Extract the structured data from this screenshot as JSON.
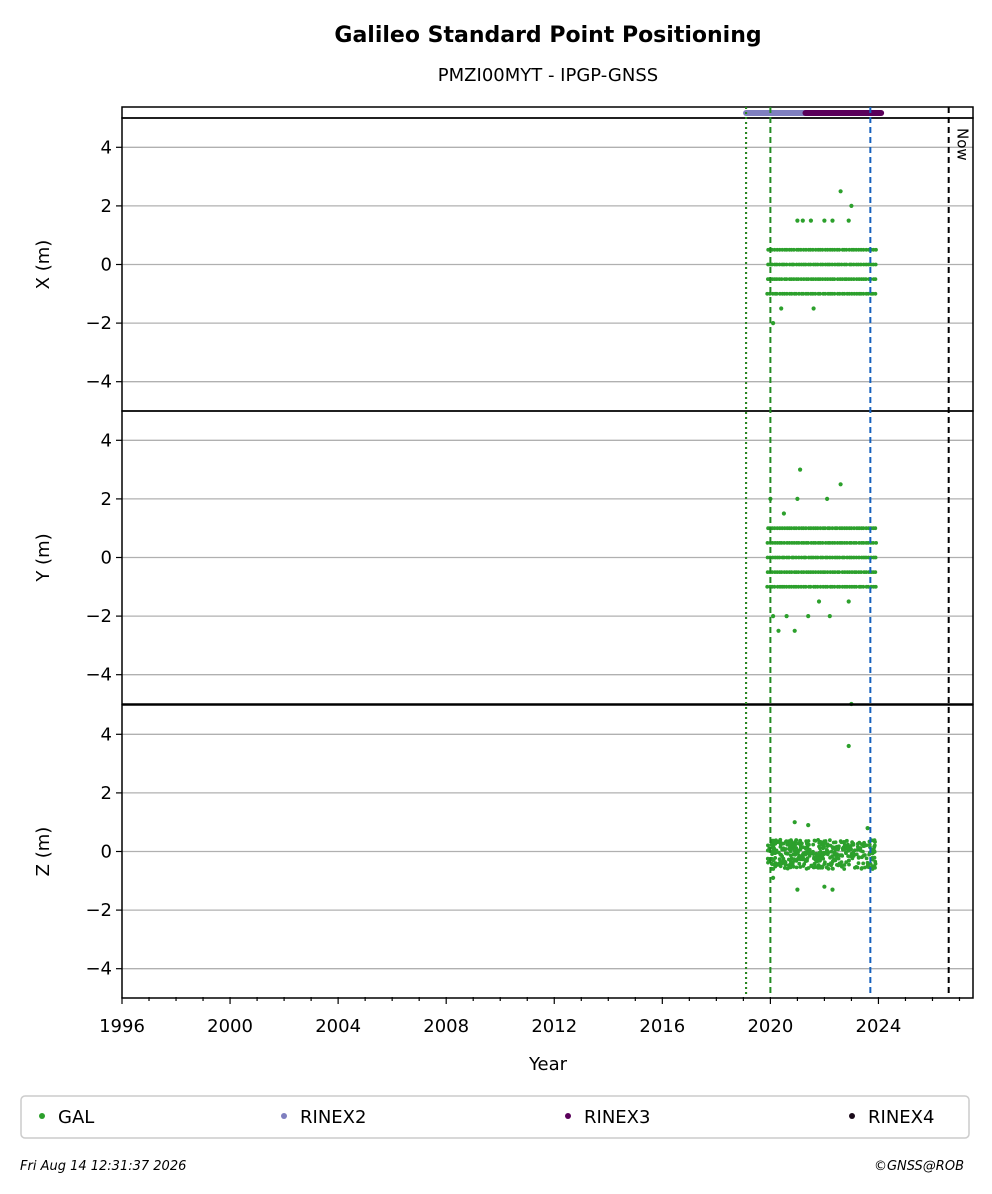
{
  "chart_data": {
    "type": "scatter",
    "title": "Galileo Standard Point Positioning",
    "subtitle": "PMZI00MYT - IPGP-GNSS",
    "xlabel": "Year",
    "xlim": [
      1996,
      2027.5
    ],
    "xticks": [
      "1996",
      "2000",
      "2004",
      "2008",
      "2012",
      "2016",
      "2020",
      "2024"
    ],
    "panels": [
      {
        "ylabel": "X (m)",
        "ylim": [
          -5,
          5
        ],
        "yticks": [
          "4",
          "2",
          "0",
          "−2",
          "−4"
        ],
        "band_top": 0.5,
        "band_bottom": -1.0,
        "band_step": 0.5,
        "outliers": [
          [
            2020.1,
            -2.0
          ],
          [
            2020.4,
            -1.5
          ],
          [
            2021.0,
            1.5
          ],
          [
            2021.2,
            1.5
          ],
          [
            2021.5,
            1.5
          ],
          [
            2021.6,
            -1.5
          ],
          [
            2022.0,
            1.5
          ],
          [
            2022.3,
            1.5
          ],
          [
            2022.6,
            2.5
          ],
          [
            2022.9,
            1.5
          ],
          [
            2023.0,
            2.0
          ]
        ]
      },
      {
        "ylabel": "Y (m)",
        "ylim": [
          -5,
          5
        ],
        "yticks": [
          "4",
          "2",
          "0",
          "−2",
          "−4"
        ],
        "band_top": 1.0,
        "band_bottom": -1.0,
        "band_step": 0.5,
        "outliers": [
          [
            2020.0,
            2.0
          ],
          [
            2020.1,
            -2.0
          ],
          [
            2020.3,
            -2.5
          ],
          [
            2020.5,
            1.5
          ],
          [
            2020.6,
            -2.0
          ],
          [
            2020.9,
            -2.5
          ],
          [
            2021.0,
            2.0
          ],
          [
            2021.1,
            3.0
          ],
          [
            2021.4,
            -2.0
          ],
          [
            2021.8,
            -1.5
          ],
          [
            2022.1,
            2.0
          ],
          [
            2022.2,
            -2.0
          ],
          [
            2022.6,
            2.5
          ],
          [
            2022.9,
            -1.5
          ],
          [
            2023.0,
            -5.0
          ]
        ]
      },
      {
        "ylabel": "Z (m)",
        "ylim": [
          -5,
          5
        ],
        "yticks": [
          "4",
          "2",
          "0",
          "−2",
          "−4"
        ],
        "band_top": 0.4,
        "band_bottom": -0.6,
        "band_step": 0,
        "outliers": [
          [
            2020.1,
            -0.9
          ],
          [
            2020.9,
            1.0
          ],
          [
            2021.0,
            -1.3
          ],
          [
            2021.4,
            0.9
          ],
          [
            2022.0,
            -1.2
          ],
          [
            2022.3,
            -1.3
          ],
          [
            2022.9,
            3.6
          ],
          [
            2023.6,
            0.8
          ]
        ]
      }
    ],
    "gal_range": [
      2019.9,
      2023.9
    ],
    "data_availability": [
      {
        "name": "RINEX2",
        "color": "#7f7fbf",
        "range": [
          2019.1,
          2021.3
        ]
      },
      {
        "name": "RINEX3",
        "color": "#5a005a",
        "range": [
          2021.3,
          2024.1
        ]
      }
    ],
    "vlines": [
      {
        "x": 2019.1,
        "color": "#cc0000",
        "style": "dotted"
      },
      {
        "x": 2019.1,
        "color": "#228b22",
        "style": "dotted"
      },
      {
        "x": 2020.0,
        "color": "#228b22",
        "style": "dashed"
      },
      {
        "x": 2023.7,
        "color": "#1560bd",
        "style": "dashed"
      },
      {
        "x": 2026.6,
        "color": "#000000",
        "style": "dashed"
      }
    ],
    "now_label": "Now",
    "grid": true,
    "legend": {
      "placement": "bottom",
      "items": [
        {
          "label": "GAL",
          "color": "#2ca02c"
        },
        {
          "label": "RINEX2",
          "color": "#7f7fbf"
        },
        {
          "label": "RINEX3",
          "color": "#5a005a"
        },
        {
          "label": "RINEX4",
          "color": "#1a0a1a"
        }
      ]
    },
    "footer_left": "Fri Aug 14 12:31:37 2026",
    "footer_right": "©GNSS@ROB"
  }
}
